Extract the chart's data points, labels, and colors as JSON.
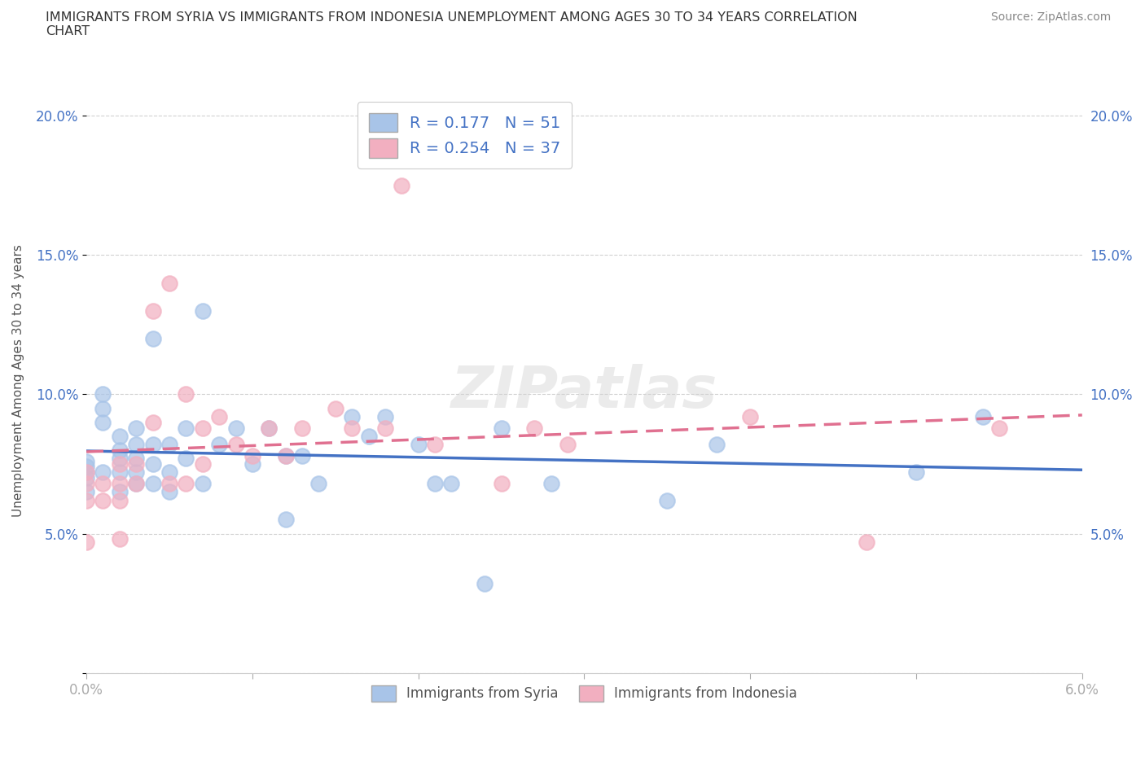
{
  "title": "IMMIGRANTS FROM SYRIA VS IMMIGRANTS FROM INDONESIA UNEMPLOYMENT AMONG AGES 30 TO 34 YEARS CORRELATION\nCHART",
  "source": "Source: ZipAtlas.com",
  "ylabel_label": "Unemployment Among Ages 30 to 34 years",
  "xlim": [
    0.0,
    0.06
  ],
  "ylim": [
    0.0,
    0.21
  ],
  "xticklabels": [
    "0.0%",
    "",
    "",
    "",
    "",
    "",
    "6.0%"
  ],
  "yticklabels": [
    "",
    "5.0%",
    "10.0%",
    "15.0%",
    "20.0%"
  ],
  "color_syria": "#a8c4e8",
  "color_indonesia": "#f2afc0",
  "color_syria_line": "#4472c4",
  "color_indonesia_line": "#e07090",
  "R_syria": 0.177,
  "N_syria": 51,
  "R_indonesia": 0.254,
  "N_indonesia": 37,
  "legend_labels": [
    "Immigrants from Syria",
    "Immigrants from Indonesia"
  ],
  "watermark_text": "ZIPatlas",
  "syria_x": [
    0.0,
    0.0,
    0.0,
    0.0,
    0.0,
    0.001,
    0.001,
    0.001,
    0.001,
    0.002,
    0.002,
    0.002,
    0.002,
    0.002,
    0.003,
    0.003,
    0.003,
    0.003,
    0.003,
    0.004,
    0.004,
    0.004,
    0.004,
    0.005,
    0.005,
    0.005,
    0.006,
    0.006,
    0.007,
    0.007,
    0.008,
    0.009,
    0.01,
    0.011,
    0.012,
    0.012,
    0.013,
    0.014,
    0.016,
    0.017,
    0.018,
    0.02,
    0.021,
    0.022,
    0.024,
    0.025,
    0.028,
    0.035,
    0.038,
    0.05,
    0.054
  ],
  "syria_y": [
    0.07,
    0.072,
    0.074,
    0.076,
    0.065,
    0.072,
    0.09,
    0.095,
    0.1,
    0.065,
    0.072,
    0.077,
    0.08,
    0.085,
    0.068,
    0.072,
    0.077,
    0.082,
    0.088,
    0.068,
    0.075,
    0.082,
    0.12,
    0.065,
    0.072,
    0.082,
    0.077,
    0.088,
    0.068,
    0.13,
    0.082,
    0.088,
    0.075,
    0.088,
    0.055,
    0.078,
    0.078,
    0.068,
    0.092,
    0.085,
    0.092,
    0.082,
    0.068,
    0.068,
    0.032,
    0.088,
    0.068,
    0.062,
    0.082,
    0.072,
    0.092
  ],
  "indonesia_x": [
    0.0,
    0.0,
    0.0,
    0.0,
    0.001,
    0.001,
    0.002,
    0.002,
    0.002,
    0.002,
    0.003,
    0.003,
    0.004,
    0.004,
    0.005,
    0.005,
    0.006,
    0.006,
    0.007,
    0.007,
    0.008,
    0.009,
    0.01,
    0.011,
    0.012,
    0.013,
    0.015,
    0.016,
    0.018,
    0.019,
    0.021,
    0.025,
    0.027,
    0.029,
    0.04,
    0.047,
    0.055
  ],
  "indonesia_y": [
    0.062,
    0.068,
    0.072,
    0.047,
    0.062,
    0.068,
    0.062,
    0.068,
    0.048,
    0.075,
    0.068,
    0.075,
    0.09,
    0.13,
    0.068,
    0.14,
    0.068,
    0.1,
    0.075,
    0.088,
    0.092,
    0.082,
    0.078,
    0.088,
    0.078,
    0.088,
    0.095,
    0.088,
    0.088,
    0.175,
    0.082,
    0.068,
    0.088,
    0.082,
    0.092,
    0.047,
    0.088
  ]
}
